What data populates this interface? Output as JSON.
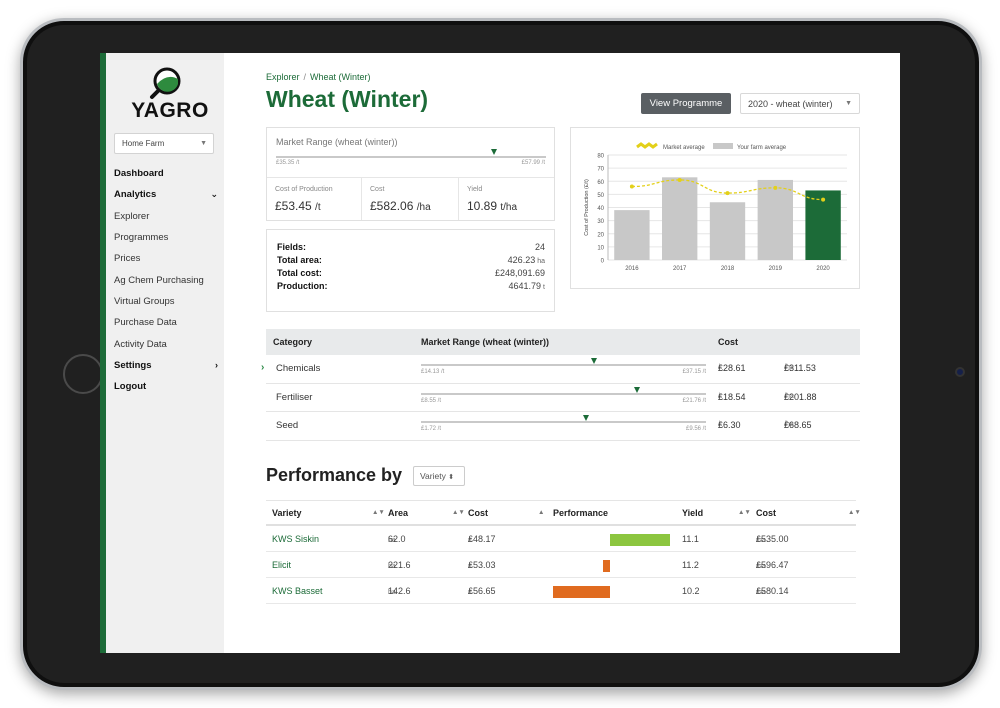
{
  "logo": {
    "text": "YAGRO"
  },
  "sidebar": {
    "farm": "Home Farm",
    "items": [
      {
        "label": "Dashboard",
        "bold": true
      },
      {
        "label": "Analytics",
        "bold": true,
        "chevron": "⌄"
      },
      {
        "label": "Explorer"
      },
      {
        "label": "Programmes"
      },
      {
        "label": "Prices"
      },
      {
        "label": "Ag Chem Purchasing"
      },
      {
        "label": "Virtual Groups"
      },
      {
        "label": "Purchase Data"
      },
      {
        "label": "Activity Data"
      },
      {
        "label": "Settings",
        "bold": true,
        "chevron": "›"
      },
      {
        "label": "Logout",
        "bold": true
      }
    ]
  },
  "breadcrumb": {
    "root": "Explorer",
    "sep": "/",
    "current": "Wheat (Winter)"
  },
  "page_title": "Wheat (Winter)",
  "toolbar": {
    "view_programme": "View Programme",
    "programme_select": "2020 - wheat (winter)"
  },
  "market_range": {
    "title": "Market Range (wheat (winter))",
    "min_label": "£35.35 /t",
    "max_label": "£57.99 /t",
    "position": 0.81
  },
  "metrics": {
    "cop_label": "Cost of Production",
    "cop_value": "£53.45",
    "cop_unit": "/t",
    "cost_label": "Cost",
    "cost_value": "£582.06",
    "cost_unit": "/ha",
    "yield_label": "Yield",
    "yield_value": "10.89",
    "yield_unit": "t/ha"
  },
  "summary": {
    "fields_label": "Fields:",
    "fields_value": "24",
    "area_label": "Total area:",
    "area_value": "426.23",
    "area_unit": "ha",
    "cost_label": "Total cost:",
    "cost_value": "£248,091.69",
    "production_label": "Production:",
    "production_value": "4641.79",
    "production_unit": "t"
  },
  "chart_data": {
    "type": "bar",
    "categories": [
      "2016",
      "2017",
      "2018",
      "2019",
      "2020"
    ],
    "series": [
      {
        "name": "Your farm average",
        "values": [
          38,
          63,
          44,
          61,
          53
        ],
        "colors": [
          "#c8c8c8",
          "#c8c8c8",
          "#c8c8c8",
          "#c8c8c8",
          "#1c6b38"
        ]
      },
      {
        "name": "Market average",
        "type": "line",
        "values": [
          56,
          61,
          51,
          55,
          46
        ],
        "color": "#e3d019"
      }
    ],
    "ylabel": "Cost of Production (£/t)",
    "ylim": [
      0,
      80
    ],
    "yticks": [
      "0",
      "10",
      "20",
      "30",
      "40",
      "50",
      "60",
      "70",
      "80"
    ],
    "grid": true,
    "legend": "top"
  },
  "category_table": {
    "headers": {
      "category": "Category",
      "range": "Market Range (wheat (winter))",
      "cost": "Cost"
    },
    "rows": [
      {
        "category": "Chemicals",
        "min": "£14.13 /t",
        "max": "£37.15 /t",
        "position": 0.61,
        "cost_t": "£28.61",
        "cost_t_unit": "/t",
        "cost_ha": "£311.53",
        "cost_ha_unit": "/ha",
        "expanded": true
      },
      {
        "category": "Fertiliser",
        "min": "£8.55 /t",
        "max": "£21.76 /t",
        "position": 0.76,
        "cost_t": "£18.54",
        "cost_t_unit": "/t",
        "cost_ha": "£201.88",
        "cost_ha_unit": "/ha"
      },
      {
        "category": "Seed",
        "min": "£1.72 /t",
        "max": "£9.56 /t",
        "position": 0.58,
        "cost_t": "£6.30",
        "cost_t_unit": "/t",
        "cost_ha": "£68.65",
        "cost_ha_unit": "/ha"
      }
    ]
  },
  "performance": {
    "title": "Performance by",
    "select": "Variety",
    "headers": {
      "variety": "Variety",
      "area": "Area",
      "cost": "Cost",
      "performance": "Performance",
      "yield": "Yield",
      "cost2": "Cost"
    },
    "rows": [
      {
        "variety": "KWS Siskin",
        "area": "62.0",
        "area_unit": "ha",
        "cost": "£48.17",
        "cost_unit": "/t",
        "performance": 1.0,
        "yield": "11.1",
        "cost_ha": "£535.00",
        "cost_ha_unit": "/ha",
        "color": "#8cc63f"
      },
      {
        "variety": "Elicit",
        "area": "221.6",
        "area_unit": "ha",
        "cost": "£53.03",
        "cost_unit": "/t",
        "performance": -0.12,
        "yield": "11.2",
        "cost_ha": "£596.47",
        "cost_ha_unit": "/ha",
        "color": "#e06b1f"
      },
      {
        "variety": "KWS Basset",
        "area": "142.6",
        "area_unit": "ha",
        "cost": "£56.65",
        "cost_unit": "/t",
        "performance": -0.95,
        "yield": "10.2",
        "cost_ha": "£580.14",
        "cost_ha_unit": "/ha",
        "color": "#e06b1f"
      }
    ]
  }
}
